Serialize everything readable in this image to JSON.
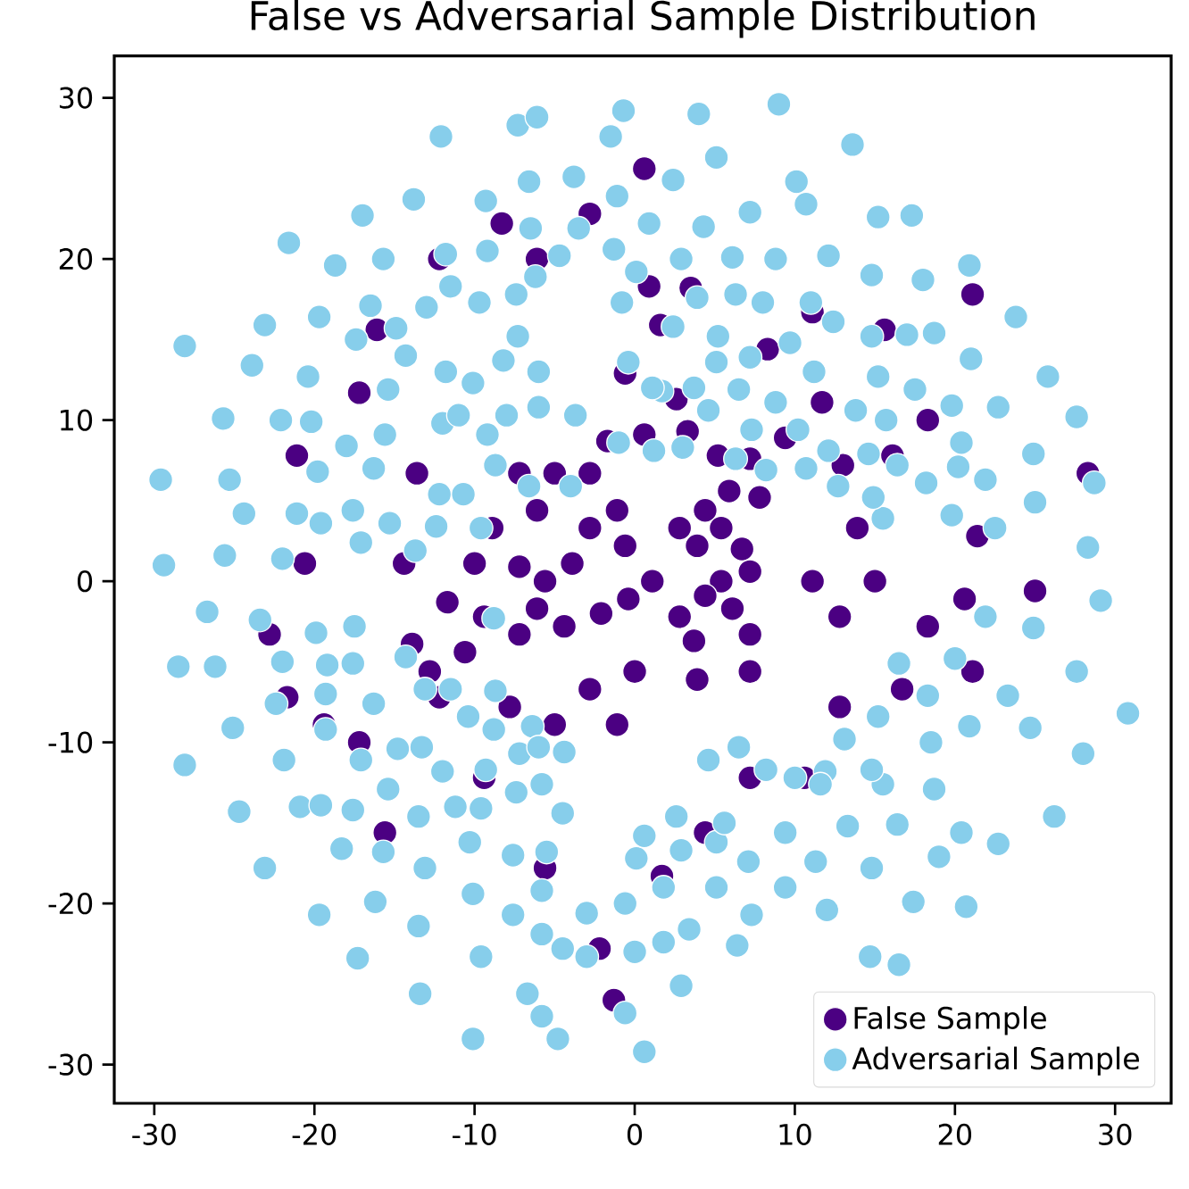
{
  "chart_data": {
    "type": "scatter",
    "title": "False vs Adversarial Sample Distribution",
    "xlim": [
      -32.5,
      33.5
    ],
    "ylim": [
      -32.4,
      32.6
    ],
    "xticks": [
      -30,
      -20,
      -10,
      0,
      10,
      20,
      30
    ],
    "yticks": [
      -30,
      -20,
      -10,
      0,
      10,
      20,
      30
    ],
    "grid": false,
    "legend": "bottom right",
    "marker": "circle",
    "series": [
      {
        "name": "False Sample",
        "color": "#4b0082",
        "x": [
          0.9,
          1.6,
          -0.6,
          2.6,
          3.3,
          0.6,
          -1.7,
          5.2,
          7.2,
          5.9,
          4.4,
          2.8,
          3.9,
          5.4,
          6.7,
          7.2,
          5.4,
          4.4,
          6.1,
          7.2,
          2.8,
          1.1,
          -0.6,
          -1.1,
          -2.8,
          -3.9,
          -5.6,
          -7.2,
          -6.1,
          -4.4,
          -7.2,
          -9.4,
          -10.6,
          -12.8,
          -13.9,
          -12.2,
          -11.7,
          -14.4,
          -10.0,
          -8.9,
          -6.1,
          -5.0,
          -7.2,
          -2.8,
          -7.8,
          -5.0,
          -2.8,
          0.0,
          -1.1,
          3.9,
          7.2,
          11.1,
          12.8,
          13.9,
          15.0,
          16.1,
          11.7,
          8.3,
          9.4,
          18.3,
          21.4,
          20.6,
          18.3,
          16.7,
          12.8,
          10.6,
          7.2,
          4.4,
          1.7,
          -1.3,
          -2.2,
          -5.6,
          -9.4,
          -15.6,
          -17.2,
          -19.4,
          -21.7,
          -22.8,
          -20.6,
          -21.1,
          -17.2,
          -16.1,
          -12.2,
          -8.3,
          -6.1,
          -2.8,
          0.6,
          3.5,
          11.1,
          15.6,
          21.1,
          25.0,
          28.3,
          21.1,
          13.0,
          -13.6,
          3.7,
          7.8,
          -2.1,
          -0.4
        ],
        "values": [
          18.3,
          15.9,
          12.9,
          11.3,
          9.3,
          9.1,
          8.7,
          7.8,
          7.6,
          5.6,
          4.4,
          3.3,
          2.2,
          3.3,
          2.0,
          0.6,
          0.0,
          -0.9,
          -1.7,
          -3.3,
          -2.2,
          0.0,
          2.2,
          4.4,
          3.3,
          1.1,
          0.0,
          0.9,
          -1.7,
          -2.8,
          -3.3,
          -2.2,
          -4.4,
          -5.6,
          -3.9,
          -7.2,
          -1.3,
          1.1,
          1.1,
          3.3,
          4.4,
          6.7,
          6.7,
          6.7,
          -7.8,
          -8.9,
          -6.7,
          -5.6,
          -8.9,
          -6.1,
          -5.6,
          0.0,
          -2.2,
          3.3,
          0.0,
          7.8,
          11.1,
          14.4,
          8.9,
          10.0,
          2.8,
          -1.1,
          -2.8,
          -6.7,
          -7.8,
          -12.2,
          -12.2,
          -15.6,
          -18.3,
          -26.0,
          -22.8,
          -17.8,
          -12.2,
          -15.6,
          -10.0,
          -8.9,
          -7.2,
          -3.3,
          1.1,
          7.8,
          11.7,
          15.6,
          20.0,
          22.2,
          20.0,
          22.8,
          25.6,
          18.2,
          16.7,
          15.6,
          -5.6,
          -0.6,
          6.7,
          17.8,
          7.2,
          6.7,
          -3.7,
          5.2,
          -2.0,
          -1.1
        ]
      },
      {
        "name": "Adversarial Sample",
        "color": "#87ceeb",
        "x": [
          -29.6,
          -29.4,
          -28.1,
          -23.9,
          -23.1,
          -21.6,
          -25.7,
          -25.3,
          -24.4,
          -25.6,
          -22.0,
          -21.1,
          -20.4,
          -20.2,
          -22.1,
          -19.8,
          -19.6,
          -19.7,
          -18.7,
          -18.0,
          -17.4,
          -17.6,
          -17.1,
          -16.5,
          -16.3,
          -15.7,
          -14.9,
          -15.4,
          -15.6,
          -15.3,
          -17.0,
          -14.3,
          -13.8,
          -13.0,
          -12.2,
          -12.4,
          -13.7,
          -12.1,
          -11.8,
          -11.5,
          -11.8,
          -12.0,
          -11.0,
          -10.7,
          -9.7,
          -9.3,
          -9.2,
          -10.1,
          -9.2,
          -9.6,
          -8.7,
          -8.2,
          -8.0,
          -7.4,
          -7.3,
          -6.1,
          -6.6,
          -6.5,
          -6.2,
          -7.3,
          -6.0,
          -6.0,
          -6.6,
          -4.7,
          -3.8,
          -3.5,
          -3.7,
          -4.0,
          -0.7,
          -1.5,
          4.0,
          9.0,
          5.1,
          13.6,
          -1.1,
          2.4,
          10.1,
          10.7,
          15.2,
          17.3,
          0.9,
          4.3,
          7.2,
          -1.3,
          2.9,
          6.1,
          8.8,
          12.1,
          20.9,
          0.1,
          14.8,
          18.0,
          -0.8,
          3.9,
          6.3,
          8.0,
          11.0,
          23.8,
          12.4,
          2.4,
          5.2,
          9.7,
          14.8,
          17.0,
          18.7,
          21.0,
          25.8,
          7.2,
          5.1,
          11.2,
          15.2,
          17.5,
          19.8,
          22.7,
          27.6,
          13.8,
          15.7,
          8.8,
          6.5,
          3.7,
          1.7,
          4.6,
          7.3,
          10.2,
          12.1,
          14.6,
          16.4,
          20.4,
          20.2,
          24.9,
          21.9,
          28.7,
          18.2,
          25.0,
          28.3,
          22.5,
          19.8,
          15.5,
          14.9,
          12.7,
          10.7,
          8.2,
          6.3,
          3.0,
          1.2,
          -1.0,
          1.1,
          -0.4,
          -26.7,
          -28.5,
          -26.2,
          -28.1,
          -25.1,
          -24.7,
          -23.1,
          -22.4,
          -21.9,
          -22.0,
          -23.4,
          -19.9,
          -20.9,
          -19.7,
          -19.6,
          -19.3,
          -19.3,
          -19.2,
          -18.3,
          -17.6,
          -17.1,
          -17.6,
          -17.3,
          -17.5,
          -16.2,
          -16.3,
          -15.7,
          -15.4,
          -14.8,
          -14.3,
          -13.3,
          -13.5,
          -13.1,
          -13.5,
          -13.4,
          -13.1,
          -12.0,
          -11.5,
          -11.2,
          -10.4,
          -10.3,
          -10.1,
          -10.1,
          -9.6,
          -9.6,
          -9.3,
          -8.8,
          -8.7,
          -8.8,
          -7.6,
          -7.6,
          -7.4,
          -7.2,
          -6.7,
          -6.4,
          -6.0,
          -5.8,
          -5.8,
          -5.8,
          -5.5,
          -4.8,
          -5.8,
          -4.5,
          -4.5,
          -4.4,
          -3.0,
          -3.0,
          29.1,
          21.9,
          24.9,
          27.6,
          30.8,
          23.3,
          24.7,
          28.0,
          26.2,
          22.7,
          20.7,
          17.4,
          20.4,
          19.0,
          14.8,
          16.5,
          14.7,
          11.3,
          12.0,
          9.4,
          7.3,
          6.4,
          3.4,
          1.8,
          2.9,
          0.0,
          -0.6,
          0.6,
          5.1,
          1.8,
          -0.6,
          7.1,
          5.1,
          2.9,
          0.1,
          0.6,
          9.4,
          13.3,
          16.4,
          18.7,
          18.5,
          15.5,
          14.8,
          13.1,
          11.9,
          10.0,
          8.2,
          6.5,
          4.6,
          2.6,
          5.6,
          18.3,
          20.9,
          20.0,
          16.5,
          15.2,
          11.6
        ],
        "values": [
          6.3,
          1.0,
          14.6,
          13.4,
          15.9,
          21.0,
          10.1,
          6.3,
          4.2,
          1.6,
          1.4,
          4.2,
          12.7,
          9.9,
          10.0,
          6.8,
          3.6,
          16.4,
          19.6,
          8.4,
          15.0,
          4.4,
          2.4,
          17.1,
          7.0,
          20.0,
          15.7,
          11.9,
          9.1,
          3.6,
          22.7,
          14.0,
          23.7,
          17.0,
          5.4,
          3.4,
          1.9,
          27.6,
          20.3,
          18.3,
          13.0,
          9.8,
          10.3,
          5.4,
          17.3,
          23.6,
          20.5,
          12.3,
          9.1,
          3.3,
          7.2,
          13.7,
          10.3,
          17.8,
          28.3,
          28.8,
          24.8,
          21.9,
          18.9,
          15.2,
          13.0,
          10.8,
          5.9,
          20.2,
          25.1,
          21.9,
          10.3,
          5.9,
          29.2,
          27.6,
          29.0,
          29.6,
          26.3,
          27.1,
          23.9,
          24.9,
          24.8,
          23.4,
          22.6,
          22.7,
          22.2,
          22.0,
          22.9,
          20.6,
          20.0,
          20.1,
          20.0,
          20.2,
          19.6,
          19.2,
          19.0,
          18.7,
          17.3,
          17.6,
          17.8,
          17.3,
          17.3,
          16.4,
          16.1,
          15.8,
          15.2,
          14.8,
          15.2,
          15.3,
          15.4,
          13.8,
          12.7,
          13.9,
          13.6,
          13.0,
          12.7,
          11.9,
          10.9,
          10.8,
          10.2,
          10.6,
          10.0,
          11.1,
          11.9,
          12.0,
          11.8,
          10.6,
          9.4,
          9.4,
          8.1,
          7.9,
          7.2,
          8.6,
          7.1,
          7.9,
          6.3,
          6.1,
          6.1,
          4.9,
          2.1,
          3.3,
          4.1,
          3.9,
          5.2,
          5.9,
          7.0,
          6.9,
          7.6,
          8.3,
          8.1,
          8.6,
          12.0,
          13.6,
          -1.9,
          -5.3,
          -5.3,
          -11.4,
          -9.1,
          -14.3,
          -17.8,
          -7.6,
          -11.1,
          -5.0,
          -2.4,
          -3.2,
          -14.0,
          -20.7,
          -13.9,
          -9.2,
          -7.0,
          -5.2,
          -16.6,
          -5.1,
          -11.1,
          -14.2,
          -23.4,
          -2.8,
          -19.9,
          -7.6,
          -16.8,
          -12.9,
          -10.4,
          -4.7,
          -10.3,
          -14.6,
          -17.8,
          -21.4,
          -25.6,
          -6.7,
          -11.8,
          -6.7,
          -14.0,
          -8.4,
          -16.2,
          -19.4,
          -28.4,
          -23.3,
          -14.1,
          -11.7,
          -9.2,
          -6.8,
          -2.3,
          -20.7,
          -17.0,
          -13.1,
          -10.7,
          -25.6,
          -9.0,
          -10.3,
          -12.6,
          -19.2,
          -21.9,
          -16.8,
          -28.4,
          -27.0,
          -22.8,
          -14.4,
          -10.6,
          -20.6,
          -23.3,
          -1.2,
          -2.2,
          -2.9,
          -5.6,
          -8.2,
          -7.1,
          -9.1,
          -10.7,
          -14.6,
          -16.3,
          -20.2,
          -19.9,
          -15.6,
          -17.1,
          -17.8,
          -23.8,
          -23.3,
          -17.4,
          -20.4,
          -19.0,
          -20.7,
          -22.6,
          -21.6,
          -22.4,
          -25.1,
          -23.0,
          -26.8,
          -29.2,
          -19.0,
          -19.0,
          -20.0,
          -17.4,
          -16.2,
          -16.7,
          -17.2,
          -15.8,
          -15.6,
          -15.2,
          -15.1,
          -12.9,
          -10.0,
          -12.6,
          -11.7,
          -9.8,
          -11.8,
          -12.2,
          -11.7,
          -10.3,
          -11.1,
          -14.6,
          -15.0,
          -7.1,
          -9.0,
          -4.8,
          -5.1,
          -8.4,
          -12.6
        ]
      }
    ]
  }
}
